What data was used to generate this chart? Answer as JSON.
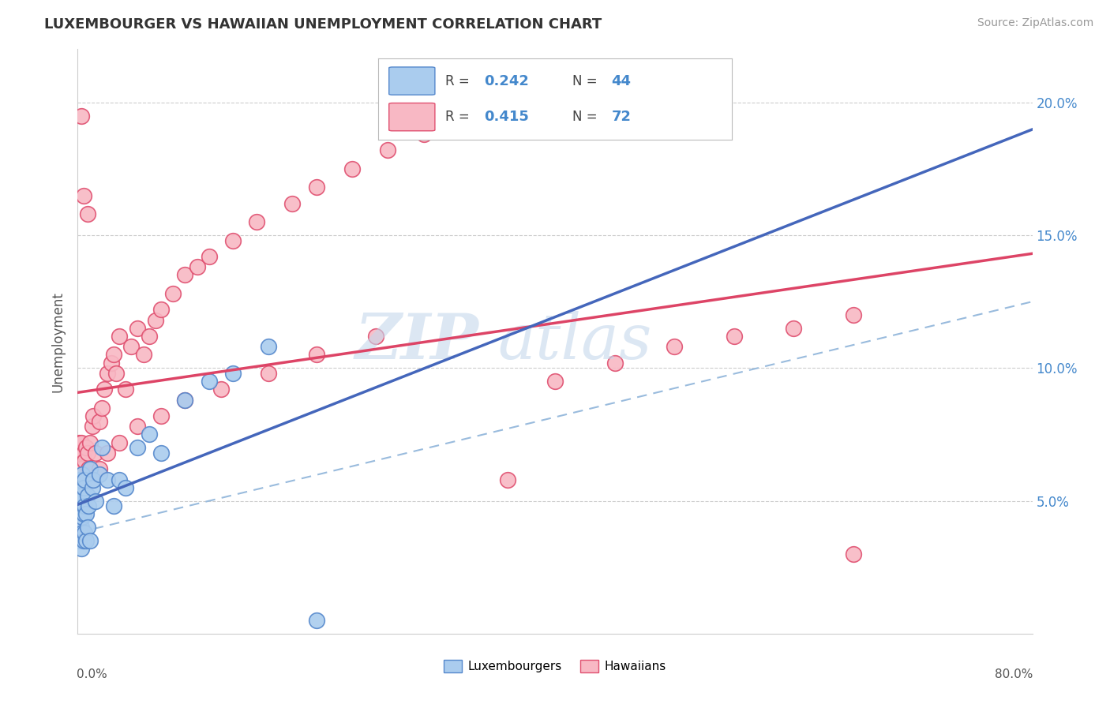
{
  "title": "LUXEMBOURGER VS HAWAIIAN UNEMPLOYMENT CORRELATION CHART",
  "source": "Source: ZipAtlas.com",
  "ylabel": "Unemployment",
  "y_ticks": [
    0.0,
    0.05,
    0.1,
    0.15,
    0.2
  ],
  "y_tick_labels": [
    "",
    "5.0%",
    "10.0%",
    "15.0%",
    "20.0%"
  ],
  "x_range": [
    0,
    0.8
  ],
  "y_range": [
    0,
    0.22
  ],
  "legend_blue_R": "0.242",
  "legend_blue_N": "44",
  "legend_pink_R": "0.415",
  "legend_pink_N": "72",
  "blue_color": "#aaccee",
  "pink_color": "#f8b8c4",
  "blue_edge": "#5588cc",
  "pink_edge": "#e05070",
  "blue_line_color": "#4466bb",
  "pink_line_color": "#dd4466",
  "dash_line_color": "#99bbdd",
  "lux_x": [
    0.001,
    0.001,
    0.001,
    0.001,
    0.002,
    0.002,
    0.002,
    0.002,
    0.003,
    0.003,
    0.003,
    0.004,
    0.004,
    0.004,
    0.005,
    0.005,
    0.005,
    0.006,
    0.006,
    0.006,
    0.007,
    0.007,
    0.008,
    0.008,
    0.009,
    0.01,
    0.01,
    0.012,
    0.013,
    0.015,
    0.018,
    0.02,
    0.025,
    0.03,
    0.035,
    0.04,
    0.05,
    0.06,
    0.07,
    0.09,
    0.11,
    0.13,
    0.16,
    0.2
  ],
  "lux_y": [
    0.035,
    0.042,
    0.048,
    0.055,
    0.038,
    0.043,
    0.05,
    0.058,
    0.032,
    0.04,
    0.052,
    0.038,
    0.044,
    0.06,
    0.035,
    0.045,
    0.055,
    0.038,
    0.048,
    0.058,
    0.035,
    0.045,
    0.04,
    0.052,
    0.048,
    0.035,
    0.062,
    0.055,
    0.058,
    0.05,
    0.06,
    0.07,
    0.058,
    0.048,
    0.058,
    0.055,
    0.07,
    0.075,
    0.068,
    0.088,
    0.095,
    0.098,
    0.108,
    0.005
  ],
  "haw_x": [
    0.001,
    0.001,
    0.001,
    0.002,
    0.002,
    0.002,
    0.003,
    0.003,
    0.003,
    0.004,
    0.004,
    0.005,
    0.005,
    0.006,
    0.006,
    0.007,
    0.008,
    0.009,
    0.01,
    0.012,
    0.013,
    0.015,
    0.018,
    0.02,
    0.022,
    0.025,
    0.028,
    0.03,
    0.032,
    0.035,
    0.04,
    0.045,
    0.05,
    0.055,
    0.06,
    0.065,
    0.07,
    0.08,
    0.09,
    0.1,
    0.11,
    0.13,
    0.15,
    0.18,
    0.2,
    0.23,
    0.26,
    0.29,
    0.32,
    0.36,
    0.4,
    0.45,
    0.5,
    0.55,
    0.6,
    0.65,
    0.003,
    0.005,
    0.008,
    0.012,
    0.018,
    0.025,
    0.035,
    0.05,
    0.07,
    0.09,
    0.12,
    0.16,
    0.2,
    0.25,
    0.003,
    0.65
  ],
  "haw_y": [
    0.05,
    0.062,
    0.072,
    0.048,
    0.058,
    0.068,
    0.052,
    0.062,
    0.072,
    0.045,
    0.058,
    0.055,
    0.068,
    0.048,
    0.065,
    0.07,
    0.068,
    0.062,
    0.072,
    0.078,
    0.082,
    0.068,
    0.08,
    0.085,
    0.092,
    0.098,
    0.102,
    0.105,
    0.098,
    0.112,
    0.092,
    0.108,
    0.115,
    0.105,
    0.112,
    0.118,
    0.122,
    0.128,
    0.135,
    0.138,
    0.142,
    0.148,
    0.155,
    0.162,
    0.168,
    0.175,
    0.182,
    0.188,
    0.192,
    0.058,
    0.095,
    0.102,
    0.108,
    0.112,
    0.115,
    0.12,
    0.05,
    0.165,
    0.158,
    0.058,
    0.062,
    0.068,
    0.072,
    0.078,
    0.082,
    0.088,
    0.092,
    0.098,
    0.105,
    0.112,
    0.195,
    0.03
  ]
}
